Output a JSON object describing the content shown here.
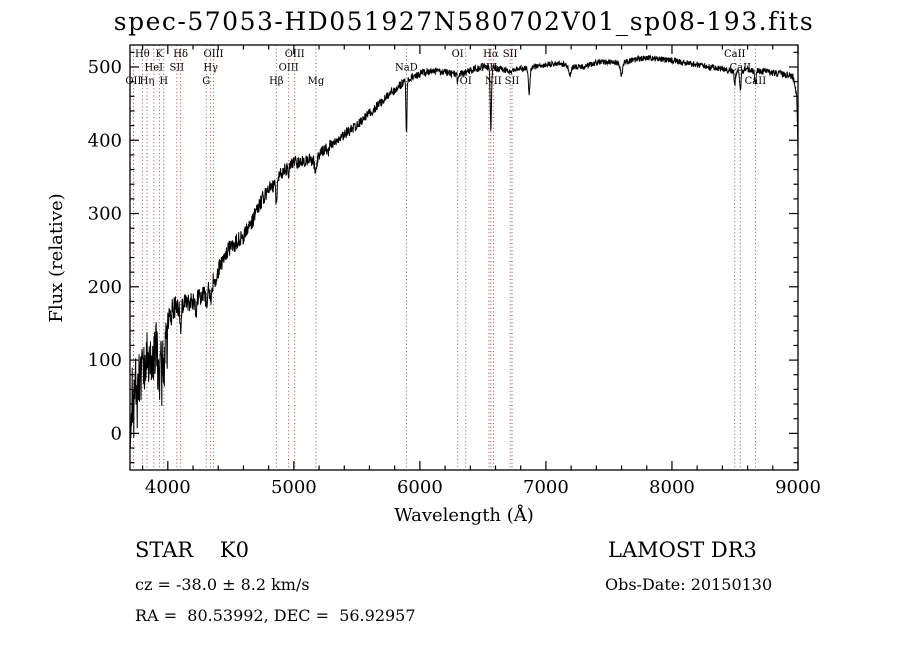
{
  "chart_data": {
    "type": "line",
    "title": "spec-57053-HD051927N580702V01_sp08-193.fits",
    "xlabel": "Wavelength (Å)",
    "ylabel": "Flux (relative)",
    "xlim": [
      3700,
      9000
    ],
    "ylim": [
      -50,
      530
    ],
    "xticks": [
      4000,
      5000,
      6000,
      7000,
      8000,
      9000
    ],
    "yticks": [
      0,
      100,
      200,
      300,
      400,
      500
    ],
    "grid": false,
    "line_color": "#000000",
    "marker_color": "#a03232",
    "spectral_lines": [
      {
        "label": "OII",
        "wavelength": 3727,
        "row": 3
      },
      {
        "label": "Hθ",
        "wavelength": 3798,
        "row": 1
      },
      {
        "label": "Hη",
        "wavelength": 3835,
        "row": 3
      },
      {
        "label": "HeI",
        "wavelength": 3889,
        "row": 2
      },
      {
        "label": "K",
        "wavelength": 3933,
        "row": 1
      },
      {
        "label": "H",
        "wavelength": 3968,
        "row": 3
      },
      {
        "label": "SII",
        "wavelength": 4072,
        "row": 2
      },
      {
        "label": "Hδ",
        "wavelength": 4102,
        "row": 1
      },
      {
        "label": "G",
        "wavelength": 4305,
        "row": 3
      },
      {
        "label": "Hγ",
        "wavelength": 4340,
        "row": 2
      },
      {
        "label": "OIII",
        "wavelength": 4363,
        "row": 1
      },
      {
        "label": "Hβ",
        "wavelength": 4861,
        "row": 3
      },
      {
        "label": "OIII",
        "wavelength": 4959,
        "row": 2
      },
      {
        "label": "OIII",
        "wavelength": 5007,
        "row": 1
      },
      {
        "label": "Mg",
        "wavelength": 5175,
        "row": 3
      },
      {
        "label": "NaD",
        "wavelength": 5893,
        "row": 2
      },
      {
        "label": "OI",
        "wavelength": 6300,
        "row": 1
      },
      {
        "label": "OI",
        "wavelength": 6364,
        "row": 3
      },
      {
        "label": "NII",
        "wavelength": 6548,
        "row": 2
      },
      {
        "label": "Hα",
        "wavelength": 6563,
        "row": 1
      },
      {
        "label": "NII",
        "wavelength": 6583,
        "row": 3
      },
      {
        "label": "SII",
        "wavelength": 6716,
        "row": 1
      },
      {
        "label": "SII",
        "wavelength": 6731,
        "row": 3
      },
      {
        "label": "CaII",
        "wavelength": 8498,
        "row": 1
      },
      {
        "label": "CaII",
        "wavelength": 8542,
        "row": 2
      },
      {
        "label": "CaII",
        "wavelength": 8662,
        "row": 3
      }
    ],
    "spectrum_anchors": [
      [
        3700,
        5
      ],
      [
        3715,
        55
      ],
      [
        3730,
        30
      ],
      [
        3745,
        80
      ],
      [
        3760,
        60
      ],
      [
        3780,
        85
      ],
      [
        3800,
        75
      ],
      [
        3820,
        95
      ],
      [
        3850,
        105
      ],
      [
        3880,
        100
      ],
      [
        3910,
        120
      ],
      [
        3940,
        110
      ],
      [
        3970,
        120
      ],
      [
        4000,
        148
      ],
      [
        4030,
        165
      ],
      [
        4060,
        172
      ],
      [
        4090,
        168
      ],
      [
        4120,
        172
      ],
      [
        4150,
        180
      ],
      [
        4200,
        178
      ],
      [
        4250,
        186
      ],
      [
        4300,
        194
      ],
      [
        4350,
        202
      ],
      [
        4400,
        222
      ],
      [
        4450,
        242
      ],
      [
        4500,
        256
      ],
      [
        4550,
        262
      ],
      [
        4600,
        268
      ],
      [
        4650,
        283
      ],
      [
        4700,
        302
      ],
      [
        4750,
        320
      ],
      [
        4800,
        332
      ],
      [
        4850,
        340
      ],
      [
        4900,
        354
      ],
      [
        4950,
        362
      ],
      [
        5000,
        370
      ],
      [
        5050,
        369
      ],
      [
        5100,
        373
      ],
      [
        5150,
        372
      ],
      [
        5200,
        381
      ],
      [
        5250,
        389
      ],
      [
        5300,
        396
      ],
      [
        5400,
        407
      ],
      [
        5500,
        421
      ],
      [
        5600,
        437
      ],
      [
        5700,
        453
      ],
      [
        5800,
        469
      ],
      [
        5900,
        483
      ],
      [
        6000,
        491
      ],
      [
        6100,
        495
      ],
      [
        6200,
        493
      ],
      [
        6300,
        489
      ],
      [
        6400,
        495
      ],
      [
        6500,
        501
      ],
      [
        6600,
        499
      ],
      [
        6700,
        495
      ],
      [
        6800,
        498
      ],
      [
        6900,
        501
      ],
      [
        7000,
        503
      ],
      [
        7100,
        505
      ],
      [
        7200,
        501
      ],
      [
        7300,
        500
      ],
      [
        7400,
        506
      ],
      [
        7500,
        507
      ],
      [
        7600,
        505
      ],
      [
        7700,
        510
      ],
      [
        7800,
        513
      ],
      [
        7900,
        511
      ],
      [
        8000,
        509
      ],
      [
        8100,
        506
      ],
      [
        8200,
        503
      ],
      [
        8300,
        500
      ],
      [
        8400,
        497
      ],
      [
        8500,
        494
      ],
      [
        8600,
        496
      ],
      [
        8700,
        494
      ],
      [
        8800,
        492
      ],
      [
        8900,
        490
      ],
      [
        8960,
        486
      ],
      [
        8990,
        460
      ],
      [
        9000,
        385
      ]
    ],
    "noise_profile": [
      [
        3700,
        42
      ],
      [
        3850,
        38
      ],
      [
        3950,
        30
      ],
      [
        4050,
        16
      ],
      [
        4300,
        13
      ],
      [
        4700,
        11
      ],
      [
        5000,
        9
      ],
      [
        5400,
        7
      ],
      [
        5800,
        6
      ],
      [
        6200,
        5
      ],
      [
        7000,
        4
      ],
      [
        8000,
        4
      ],
      [
        9000,
        5
      ]
    ],
    "absorption_features": [
      [
        3933,
        50,
        6
      ],
      [
        3968,
        42,
        6
      ],
      [
        4102,
        26,
        5
      ],
      [
        4226,
        18,
        5
      ],
      [
        4305,
        16,
        8
      ],
      [
        4340,
        22,
        5
      ],
      [
        4383,
        14,
        4
      ],
      [
        4861,
        28,
        5
      ],
      [
        4959,
        6,
        4
      ],
      [
        5175,
        20,
        9
      ],
      [
        5270,
        10,
        6
      ],
      [
        5893,
        75,
        4
      ],
      [
        6300,
        10,
        4
      ],
      [
        6563,
        85,
        5
      ],
      [
        6867,
        35,
        7
      ],
      [
        7190,
        12,
        8
      ],
      [
        7600,
        18,
        8
      ],
      [
        8498,
        20,
        5
      ],
      [
        8542,
        26,
        5
      ],
      [
        8662,
        20,
        5
      ]
    ]
  },
  "annotations": {
    "class_label": "STAR    K0",
    "survey": "LAMOST DR3",
    "cz": "cz = -38.0 ± 8.2 km/s",
    "obs_date": "Obs-Date: 20150130",
    "coords": "RA =  80.53992, DEC =  56.92957"
  }
}
